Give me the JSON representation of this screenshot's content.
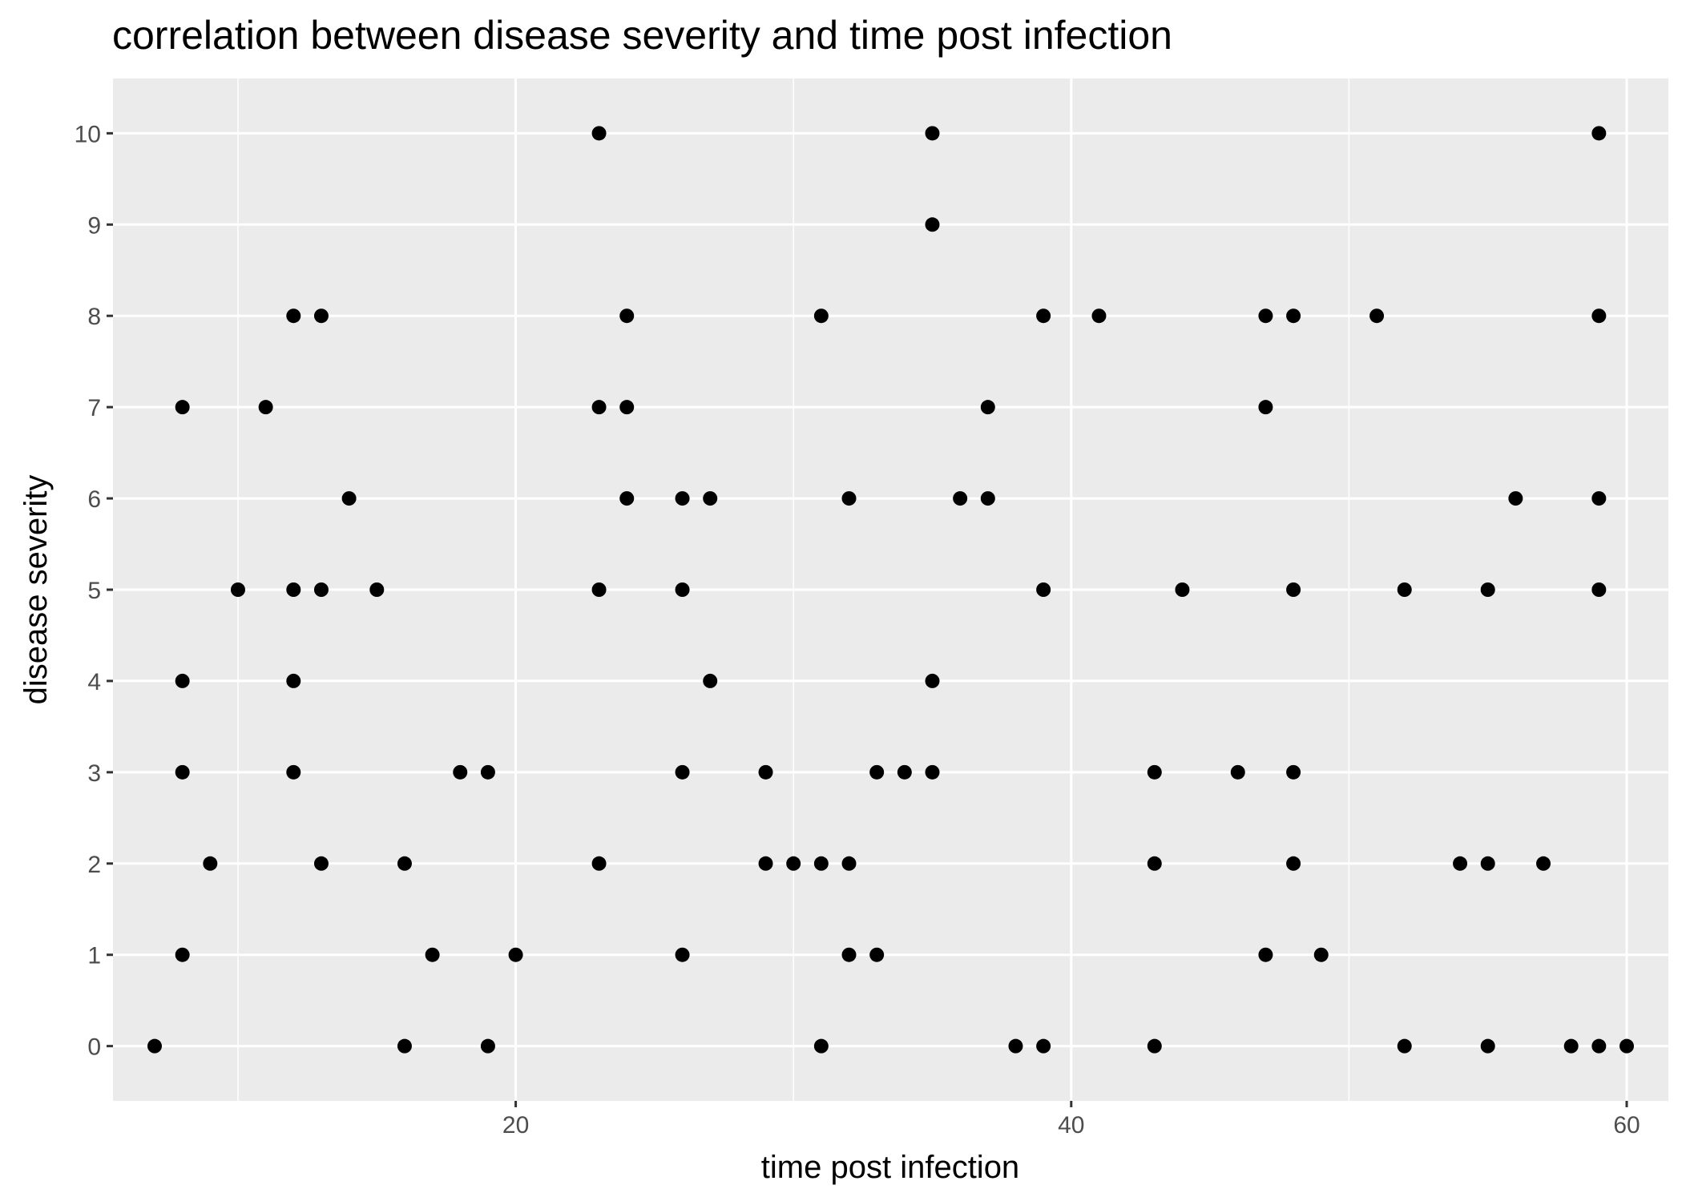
{
  "chart_data": {
    "type": "scatter",
    "title": "correlation between disease severity and time post infection",
    "xlabel": "time post infection",
    "ylabel": "disease severity",
    "xlim": [
      5.5,
      61.5
    ],
    "ylim": [
      -0.6,
      10.6
    ],
    "x_ticks": [
      20,
      40,
      60
    ],
    "x_minor_ticks": [
      10,
      30,
      50
    ],
    "y_ticks": [
      0,
      1,
      2,
      3,
      4,
      5,
      6,
      7,
      8,
      9,
      10
    ],
    "grid": true,
    "point_color": "#000000",
    "panel_background": "#ebebeb",
    "grid_color": "#ffffff",
    "points": [
      [
        7,
        0
      ],
      [
        8,
        7
      ],
      [
        8,
        4
      ],
      [
        8,
        3
      ],
      [
        8,
        1
      ],
      [
        9,
        2
      ],
      [
        10,
        5
      ],
      [
        11,
        7
      ],
      [
        12,
        8
      ],
      [
        12,
        5
      ],
      [
        12,
        4
      ],
      [
        12,
        3
      ],
      [
        13,
        8
      ],
      [
        13,
        5
      ],
      [
        13,
        2
      ],
      [
        14,
        6
      ],
      [
        15,
        5
      ],
      [
        16,
        2
      ],
      [
        16,
        0
      ],
      [
        17,
        1
      ],
      [
        18,
        3
      ],
      [
        19,
        3
      ],
      [
        19,
        0
      ],
      [
        20,
        1
      ],
      [
        23,
        10
      ],
      [
        23,
        7
      ],
      [
        23,
        5
      ],
      [
        23,
        2
      ],
      [
        24,
        8
      ],
      [
        24,
        7
      ],
      [
        24,
        6
      ],
      [
        26,
        6
      ],
      [
        26,
        5
      ],
      [
        26,
        3
      ],
      [
        26,
        1
      ],
      [
        27,
        6
      ],
      [
        27,
        4
      ],
      [
        29,
        3
      ],
      [
        29,
        2
      ],
      [
        30,
        2
      ],
      [
        31,
        8
      ],
      [
        31,
        2
      ],
      [
        31,
        0
      ],
      [
        32,
        6
      ],
      [
        32,
        2
      ],
      [
        32,
        1
      ],
      [
        33,
        3
      ],
      [
        33,
        1
      ],
      [
        34,
        3
      ],
      [
        35,
        10
      ],
      [
        35,
        9
      ],
      [
        35,
        4
      ],
      [
        35,
        3
      ],
      [
        36,
        6
      ],
      [
        37,
        7
      ],
      [
        37,
        6
      ],
      [
        38,
        0
      ],
      [
        39,
        8
      ],
      [
        39,
        5
      ],
      [
        39,
        0
      ],
      [
        41,
        8
      ],
      [
        43,
        3
      ],
      [
        43,
        2
      ],
      [
        43,
        0
      ],
      [
        44,
        5
      ],
      [
        46,
        3
      ],
      [
        47,
        8
      ],
      [
        47,
        7
      ],
      [
        47,
        1
      ],
      [
        48,
        8
      ],
      [
        48,
        5
      ],
      [
        48,
        3
      ],
      [
        48,
        2
      ],
      [
        49,
        1
      ],
      [
        51,
        8
      ],
      [
        52,
        5
      ],
      [
        52,
        0
      ],
      [
        54,
        2
      ],
      [
        55,
        5
      ],
      [
        55,
        2
      ],
      [
        55,
        0
      ],
      [
        56,
        6
      ],
      [
        57,
        2
      ],
      [
        58,
        0
      ],
      [
        59,
        10
      ],
      [
        59,
        8
      ],
      [
        59,
        6
      ],
      [
        59,
        5
      ],
      [
        59,
        0
      ],
      [
        60,
        0
      ]
    ]
  }
}
